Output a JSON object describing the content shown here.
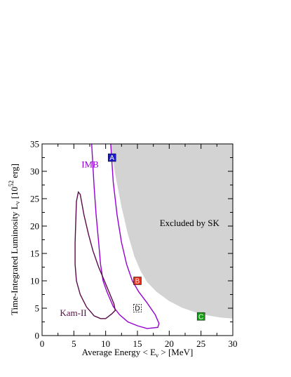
{
  "chart_data": {
    "type": "line",
    "xlabel": {
      "prefix": "Average Energy  < E",
      "sub": "ν",
      "suffix": " >  [MeV]"
    },
    "ylabel": {
      "prefix": "Time-Integrated Luminosity   L",
      "sub": "ν",
      "mid": "  [10",
      "sup": "52",
      "suffix": " erg]"
    },
    "xlim": [
      0,
      30
    ],
    "ylim": [
      0,
      35
    ],
    "xticks": [
      0,
      5,
      10,
      15,
      20,
      25,
      30
    ],
    "yticks": [
      0,
      5,
      10,
      15,
      20,
      25,
      30,
      35
    ],
    "grid": false,
    "colors": {
      "excluded_fill": "#d3d3d3",
      "imb": "#9400d3",
      "kam": "#5a0a4a",
      "marker_a": "#1a1ac8",
      "marker_b": "#e62814",
      "marker_c": "#14a014"
    },
    "excluded_region": {
      "label": "Excluded by SK",
      "label_pos": [
        18.5,
        20.0
      ],
      "boundary": [
        [
          10.8,
          35
        ],
        [
          11.5,
          29.5
        ],
        [
          12.5,
          23.5
        ],
        [
          13.5,
          18.5
        ],
        [
          14.5,
          14.5
        ],
        [
          15.5,
          11.8
        ],
        [
          16.5,
          9.8
        ],
        [
          18,
          8.0
        ],
        [
          20,
          6.3
        ],
        [
          22,
          5.1
        ],
        [
          24,
          4.3
        ],
        [
          26,
          3.7
        ],
        [
          28,
          3.3
        ],
        [
          30,
          3.1
        ]
      ]
    },
    "series": [
      {
        "name": "IMB",
        "label_pos": [
          6.2,
          30.7
        ],
        "points": [
          [
            7.8,
            35
          ],
          [
            8.2,
            27
          ],
          [
            8.5,
            22
          ],
          [
            8.9,
            17
          ],
          [
            9.2,
            13
          ],
          [
            9.6,
            10
          ],
          [
            10.2,
            8
          ],
          [
            11.2,
            5.3
          ],
          [
            12.2,
            3.8
          ],
          [
            13.5,
            2.5
          ],
          [
            15,
            1.8
          ],
          [
            16.5,
            1.3
          ],
          [
            18.2,
            1.5
          ],
          [
            18.4,
            2.2
          ],
          [
            17.8,
            3.8
          ],
          [
            16.5,
            6.0
          ],
          [
            15.2,
            8.0
          ],
          [
            14.2,
            10.0
          ],
          [
            13.3,
            13.0
          ],
          [
            12.5,
            17.0
          ],
          [
            11.8,
            22.0
          ],
          [
            11.2,
            28.0
          ],
          [
            10.8,
            35
          ]
        ]
      },
      {
        "name": "Kam-II",
        "label_pos": [
          2.8,
          3.6
        ],
        "points": [
          [
            5.2,
            13
          ],
          [
            5.2,
            17
          ],
          [
            5.3,
            21
          ],
          [
            5.4,
            24.5
          ],
          [
            5.7,
            26.2
          ],
          [
            6.0,
            25.8
          ],
          [
            6.6,
            22
          ],
          [
            7.3,
            18.5
          ],
          [
            8.0,
            15.5
          ],
          [
            8.9,
            12.5
          ],
          [
            9.8,
            10.0
          ],
          [
            10.7,
            7.5
          ],
          [
            11.3,
            5.8
          ],
          [
            11.5,
            4.6
          ],
          [
            11.0,
            4.0
          ],
          [
            10.0,
            3.1
          ],
          [
            9.2,
            3.1
          ],
          [
            8.2,
            3.6
          ],
          [
            7.0,
            5.2
          ],
          [
            6.0,
            7.5
          ],
          [
            5.4,
            10.0
          ],
          [
            5.2,
            13
          ]
        ]
      }
    ],
    "markers": [
      {
        "label": "A",
        "x": 11.0,
        "y": 32.5,
        "style": "filled",
        "color": "#1a1ac8"
      },
      {
        "label": "B",
        "x": 15.0,
        "y": 10.0,
        "style": "filled",
        "color": "#e62814"
      },
      {
        "label": "C",
        "x": 25.0,
        "y": 3.5,
        "style": "filled",
        "color": "#14a014"
      },
      {
        "label": "D",
        "x": 15.0,
        "y": 5.0,
        "style": "dashed",
        "color": "#000000"
      }
    ]
  }
}
